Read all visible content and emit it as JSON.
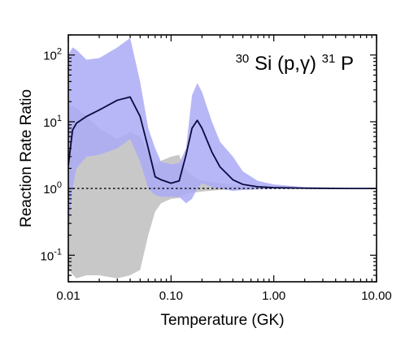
{
  "chart_data": {
    "type": "area",
    "title": "",
    "annotation": {
      "mass_target": "30",
      "element_target": "Si",
      "reaction": "(p,γ)",
      "mass_product": "31",
      "element_product": "P"
    },
    "xlabel": "Temperature (GK)",
    "ylabel": "Reaction Rate Ratio",
    "x_scale": "log",
    "y_scale": "log",
    "xlim": [
      0.01,
      10
    ],
    "ylim": [
      0.04,
      200
    ],
    "grid": false,
    "x_ticks": [
      {
        "value": 0.01,
        "label": "0.01"
      },
      {
        "value": 0.1,
        "label": "0.10"
      },
      {
        "value": 1,
        "label": "1.00"
      },
      {
        "value": 10,
        "label": "10.00"
      }
    ],
    "y_ticks": [
      {
        "value": 0.1,
        "base": "10",
        "exp": "-1"
      },
      {
        "value": 1,
        "base": "10",
        "exp": "0"
      },
      {
        "value": 10,
        "base": "10",
        "exp": "1"
      },
      {
        "value": 100,
        "base": "10",
        "exp": "2"
      }
    ],
    "reference_line": {
      "y": 1,
      "style": "dotted",
      "color": "#000000"
    },
    "series": [
      {
        "kind": "band",
        "color": "#c8c8c8",
        "x": [
          0.01,
          0.012,
          0.015,
          0.02,
          0.03,
          0.04,
          0.05,
          0.06,
          0.07,
          0.08,
          0.1,
          0.12,
          0.13,
          0.15,
          0.18,
          0.2,
          0.3,
          0.5,
          1,
          2,
          5,
          10
        ],
        "upper": [
          18,
          16,
          12,
          8,
          5.5,
          7,
          6,
          3.5,
          2.3,
          2.6,
          3.0,
          3.2,
          2.2,
          1.7,
          1.4,
          1.3,
          1.2,
          1.08,
          1.03,
          1.01,
          1.0,
          1.0
        ],
        "lower": [
          0.06,
          0.045,
          0.05,
          0.05,
          0.045,
          0.05,
          0.06,
          0.2,
          0.45,
          0.6,
          0.7,
          0.72,
          0.8,
          0.85,
          0.88,
          0.9,
          0.95,
          0.97,
          0.99,
          1.0,
          1.0,
          1.0
        ]
      },
      {
        "kind": "band",
        "color": "#aaaaf6",
        "opacity": 0.85,
        "x": [
          0.01,
          0.011,
          0.012,
          0.015,
          0.02,
          0.03,
          0.04,
          0.05,
          0.06,
          0.07,
          0.08,
          0.1,
          0.12,
          0.14,
          0.16,
          0.18,
          0.2,
          0.25,
          0.3,
          0.4,
          0.5,
          0.7,
          1,
          2,
          5,
          10
        ],
        "upper": [
          100,
          130,
          120,
          85,
          90,
          130,
          180,
          40,
          8,
          4,
          2.5,
          2.3,
          2.4,
          4,
          25,
          38,
          28,
          10,
          5,
          3,
          1.8,
          1.3,
          1.15,
          1.05,
          1.02,
          1.0
        ],
        "lower": [
          0.2,
          1.0,
          2.0,
          3.0,
          3.2,
          4,
          5.5,
          2.5,
          1.0,
          0.8,
          0.75,
          0.75,
          0.75,
          0.6,
          0.7,
          1.0,
          1.2,
          1.05,
          1.0,
          0.92,
          0.95,
          0.97,
          0.99,
          1.0,
          1.0,
          1.0
        ]
      },
      {
        "kind": "line",
        "color": "#0a0a40",
        "x": [
          0.01,
          0.011,
          0.012,
          0.015,
          0.02,
          0.03,
          0.04,
          0.05,
          0.06,
          0.07,
          0.08,
          0.1,
          0.12,
          0.14,
          0.16,
          0.18,
          0.2,
          0.25,
          0.3,
          0.4,
          0.5,
          0.7,
          1,
          2,
          5,
          10
        ],
        "y": [
          2.2,
          7.5,
          9.5,
          12,
          15,
          21,
          23.5,
          12,
          4,
          1.5,
          1.35,
          1.2,
          1.3,
          3.2,
          8,
          10.5,
          8,
          3.5,
          2.1,
          1.35,
          1.15,
          1.06,
          1.03,
          1.01,
          1.0,
          1.0
        ]
      }
    ]
  }
}
